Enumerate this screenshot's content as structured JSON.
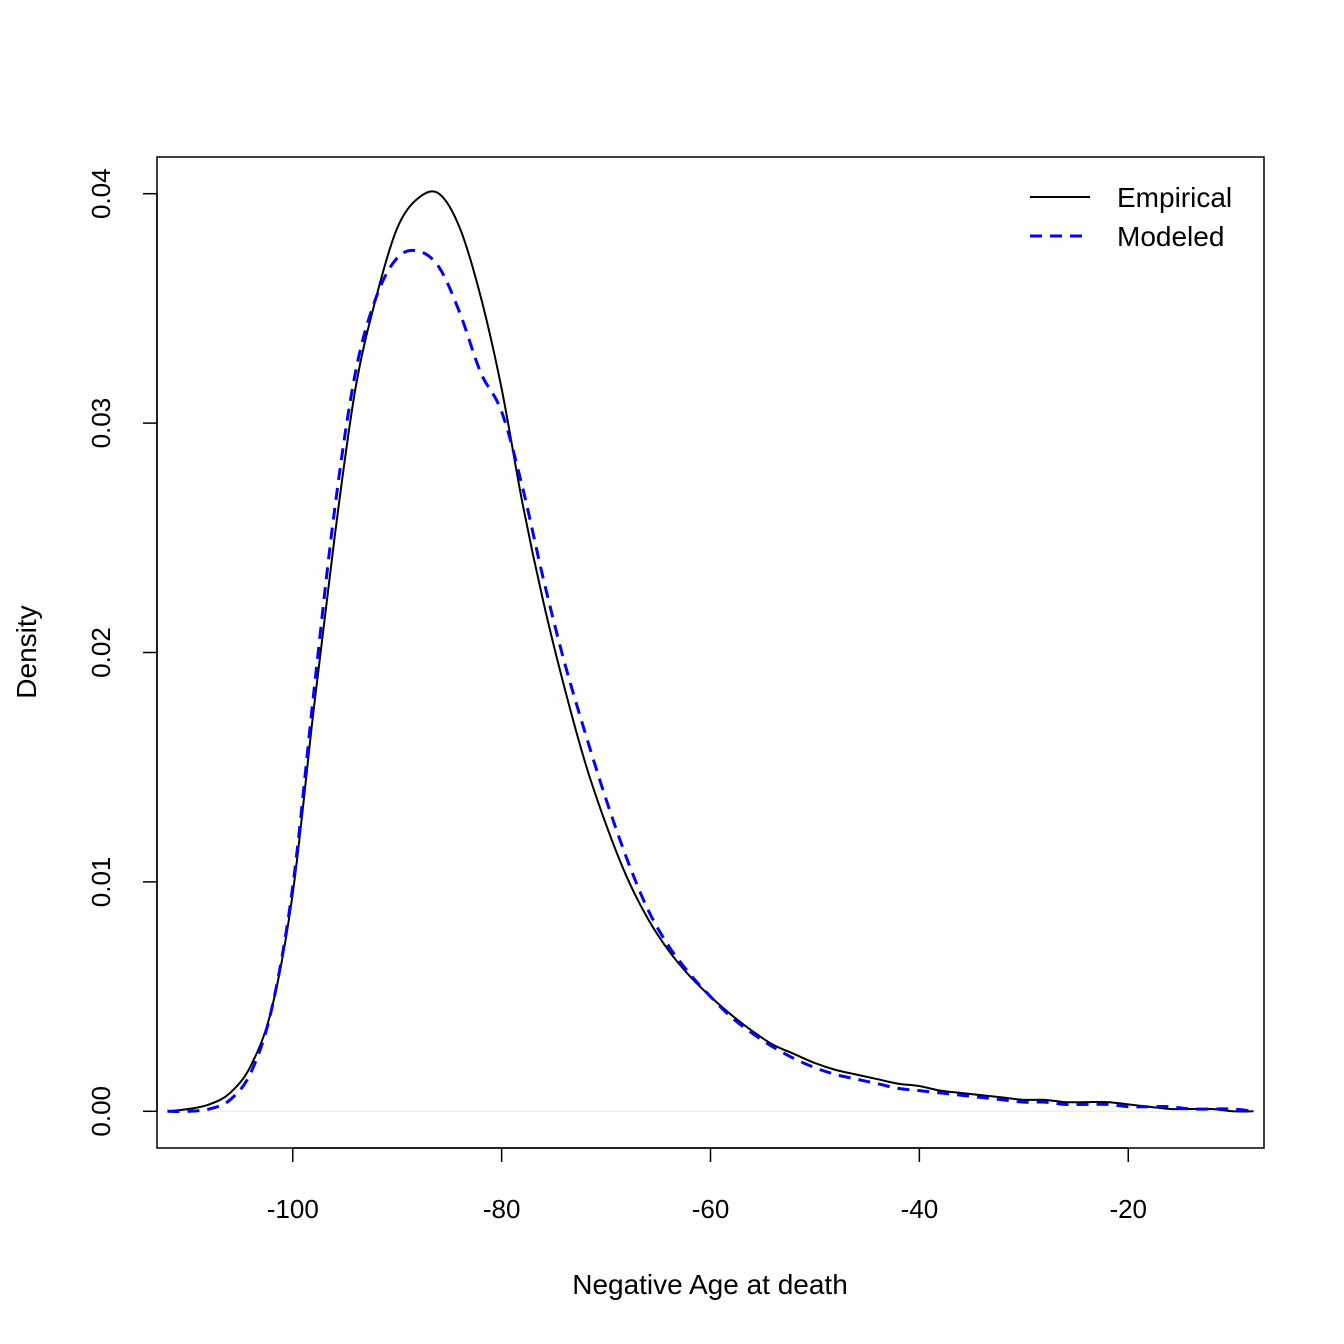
{
  "chart_data": {
    "type": "line",
    "title": "",
    "xlabel": "Negative Age at death",
    "ylabel": "Density",
    "xlim": [
      -113,
      -7
    ],
    "ylim": [
      -0.0016,
      0.0416
    ],
    "x_ticks": [
      -100,
      -80,
      -60,
      -40,
      -20
    ],
    "y_ticks": [
      0.0,
      0.01,
      0.02,
      0.03,
      0.04
    ],
    "x_tick_labels": [
      "-100",
      "-80",
      "-60",
      "-40",
      "-20"
    ],
    "y_tick_labels": [
      "0.00",
      "0.01",
      "0.02",
      "0.03",
      "0.04"
    ],
    "grid": false,
    "legend_position": "top-right",
    "series": [
      {
        "name": "Empirical",
        "color": "#000000",
        "dash": "solid",
        "x": [
          -112,
          -110,
          -108,
          -106,
          -104,
          -102,
          -100,
          -98,
          -96,
          -94,
          -92,
          -90,
          -88,
          -86,
          -84,
          -82,
          -80,
          -78,
          -76,
          -74,
          -72,
          -70,
          -68,
          -66,
          -64,
          -62,
          -60,
          -58,
          -56,
          -54,
          -52,
          -50,
          -48,
          -46,
          -44,
          -42,
          -40,
          -38,
          -36,
          -34,
          -32,
          -30,
          -28,
          -26,
          -24,
          -22,
          -20,
          -18,
          -16,
          -14,
          -12,
          -10,
          -8
        ],
        "y": [
          0.0,
          0.0001,
          0.0003,
          0.0008,
          0.002,
          0.0045,
          0.0095,
          0.0175,
          0.025,
          0.0315,
          0.0355,
          0.0385,
          0.0398,
          0.04,
          0.0385,
          0.0355,
          0.0315,
          0.0265,
          0.0222,
          0.0185,
          0.0152,
          0.0125,
          0.0102,
          0.0084,
          0.007,
          0.0059,
          0.005,
          0.0042,
          0.0035,
          0.0029,
          0.0025,
          0.0021,
          0.0018,
          0.0016,
          0.0014,
          0.0012,
          0.0011,
          0.0009,
          0.0008,
          0.0007,
          0.0006,
          0.0005,
          0.0005,
          0.0004,
          0.0004,
          0.0004,
          0.0003,
          0.0002,
          0.0001,
          0.0001,
          0.0001,
          0.0,
          0.0
        ]
      },
      {
        "name": "Modeled",
        "color": "#0000ff",
        "dash": "dashed",
        "x": [
          -112,
          -110,
          -108,
          -106,
          -104,
          -102,
          -100,
          -98,
          -96,
          -94,
          -92,
          -90,
          -88,
          -86,
          -84,
          -82,
          -80,
          -78,
          -76,
          -74,
          -72,
          -70,
          -68,
          -66,
          -64,
          -62,
          -60,
          -58,
          -56,
          -54,
          -52,
          -50,
          -48,
          -46,
          -44,
          -42,
          -40,
          -38,
          -36,
          -34,
          -32,
          -30,
          -28,
          -26,
          -24,
          -22,
          -20,
          -18,
          -16,
          -14,
          -12,
          -10,
          -8
        ],
        "y": [
          0.0,
          0.0,
          0.0001,
          0.0005,
          0.0017,
          0.0045,
          0.0098,
          0.0182,
          0.0262,
          0.0322,
          0.0355,
          0.0372,
          0.0375,
          0.0368,
          0.0348,
          0.0322,
          0.0305,
          0.0272,
          0.0232,
          0.0196,
          0.0165,
          0.0136,
          0.011,
          0.0088,
          0.0072,
          0.006,
          0.005,
          0.0041,
          0.0034,
          0.0028,
          0.0023,
          0.0019,
          0.0016,
          0.0014,
          0.0012,
          0.001,
          0.0009,
          0.0008,
          0.0007,
          0.0006,
          0.0005,
          0.0004,
          0.0004,
          0.0003,
          0.0003,
          0.0003,
          0.0002,
          0.0002,
          0.0002,
          0.0001,
          0.0001,
          0.0001,
          0.0
        ]
      }
    ]
  }
}
